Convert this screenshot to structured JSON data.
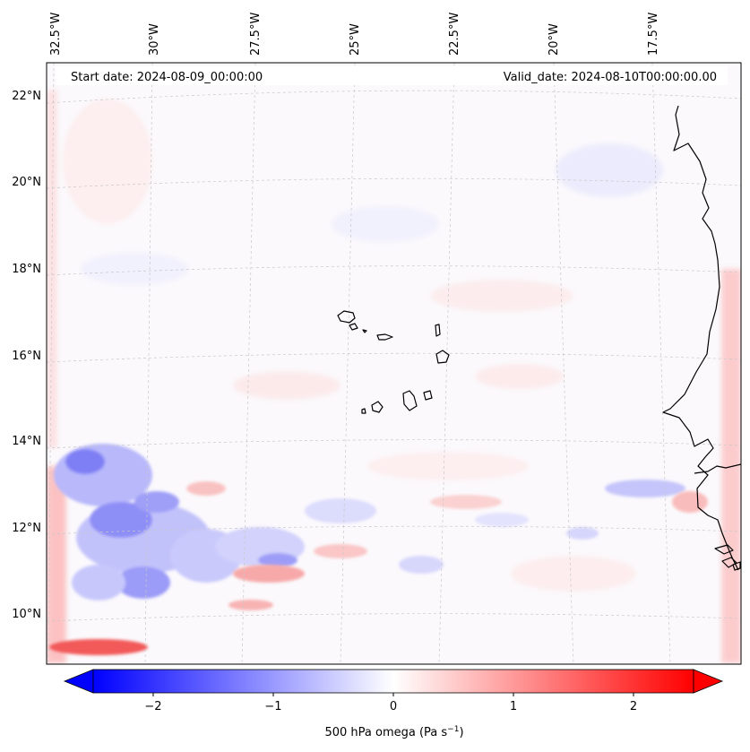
{
  "header": {
    "start_date": "Start date: 2024-08-09_00:00:00",
    "valid_date": "Valid_date: 2024-08-10T00:00:00.00"
  },
  "axes": {
    "lon_labels": [
      "32.5°W",
      "30°W",
      "27.5°W",
      "25°W",
      "22.5°W",
      "20°W",
      "17.5°W"
    ],
    "lat_labels": [
      "22°N",
      "20°N",
      "18°N",
      "16°N",
      "14°N",
      "12°N",
      "10°N"
    ],
    "gridlines": true,
    "gridline_style": "dashed, light grey"
  },
  "colorbar": {
    "ticks": [
      "−2",
      "−1",
      "0",
      "1",
      "2"
    ],
    "tick_values": [
      -2,
      -1,
      0,
      1,
      2
    ],
    "range": [
      -2.5,
      2.5
    ],
    "extend": "both",
    "colormap": "bwr",
    "color_negative": "#0000ff",
    "color_zero": "#ffffff",
    "color_positive": "#ff0000",
    "label_prefix": "500 hPa omega (Pa s",
    "label_exp": "−1",
    "label_suffix": ")"
  },
  "map": {
    "field": "500 hPa omega",
    "coastline_color": "#000000"
  }
}
